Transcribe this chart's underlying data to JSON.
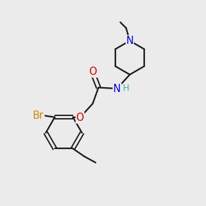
{
  "bg_color": "#ebebeb",
  "bond_color": "#1a1a1a",
  "N_color": "#0000cc",
  "O_color": "#cc0000",
  "Br_color": "#cc8800",
  "H_color": "#44aaaa",
  "line_width": 1.6,
  "font_size_atom": 10.5,
  "fig_size": [
    3.0,
    3.0
  ],
  "dpi": 100,
  "xlim": [
    0,
    10
  ],
  "ylim": [
    0,
    10
  ]
}
